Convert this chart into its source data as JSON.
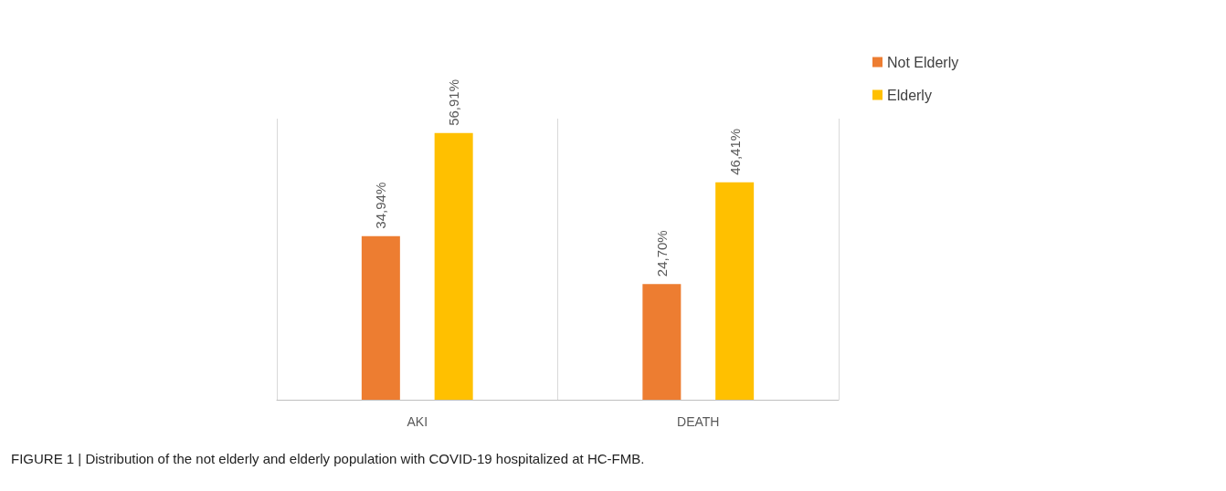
{
  "chart_data": {
    "type": "bar",
    "categories": [
      "AKI",
      "DEATH"
    ],
    "series": [
      {
        "name": "Not Elderly",
        "color": "#ed7d31",
        "values": [
          34.94,
          24.7
        ],
        "value_labels": [
          "34,94%",
          "24,70%"
        ]
      },
      {
        "name": "Elderly",
        "color": "#ffc000",
        "values": [
          56.91,
          46.41
        ],
        "value_labels": [
          "56,91%",
          "46,41%"
        ]
      }
    ],
    "grid": "x",
    "legend": "top right",
    "annotations": [
      "FIGURE 1 | Distribution of the not elderly and elderly population with COVID-19 hospitalized at HC-FMB."
    ]
  }
}
